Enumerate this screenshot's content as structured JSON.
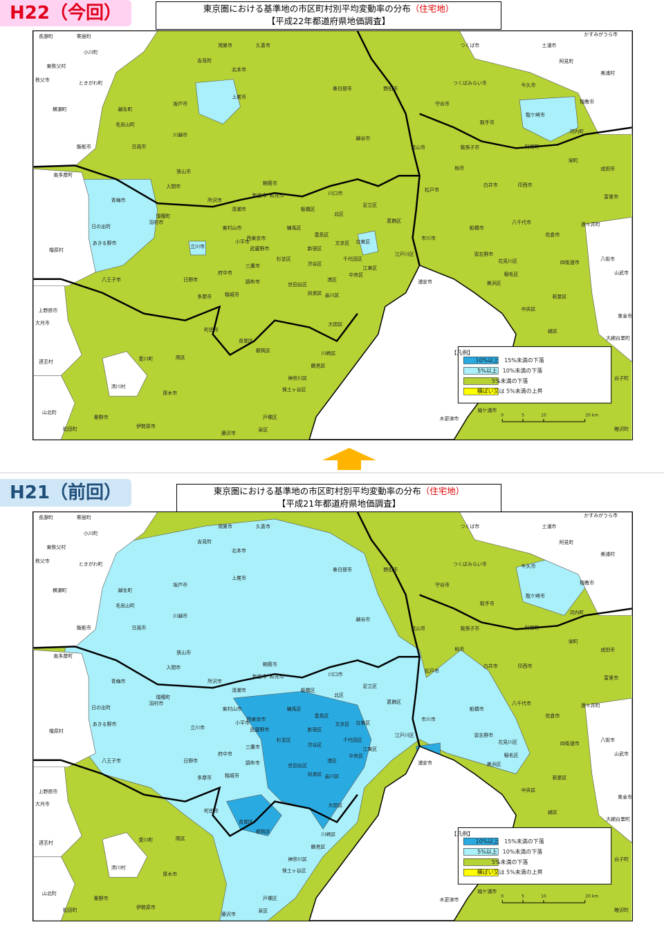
{
  "panels": [
    {
      "badge": "H22（今回）",
      "title": "東京圏における基準地の市区町村別平均変動率の分布",
      "title_note": "（住宅地）",
      "subtitle": "【平成22年都道府県地価調査】"
    },
    {
      "badge": "H21（前回）",
      "title": "東京圏における基準地の市区町村別平均変動率の分布",
      "title_note": "（住宅地）",
      "subtitle": "【平成21年都道府県地価調査】"
    }
  ],
  "legend": {
    "heading": "【凡例】",
    "items": [
      {
        "label": "10%以上　15%未満の下落",
        "color": "#29abe2"
      },
      {
        "label": "5%以上　10%未満の下落",
        "color": "#aaf0fa"
      },
      {
        "label": "5%未満の下落",
        "color": "#b5d335"
      },
      {
        "label": "横ばい又は 5%未満の上昇",
        "color": "#ffff00"
      }
    ]
  },
  "scale": {
    "ticks": [
      "0",
      "5",
      "10",
      "20 km"
    ]
  },
  "map_labels": [
    "長瀞町",
    "寄居町",
    "小川町",
    "東秩父村",
    "秩父市",
    "ときがわ町",
    "横瀬町",
    "越生町",
    "毛呂山町",
    "飯能市",
    "日高市",
    "坂戸市",
    "川越市",
    "鴻巣市",
    "久喜市",
    "吉見町",
    "北本市",
    "上尾市",
    "春日部市",
    "野田市",
    "つくば市",
    "土浦市",
    "かすみがうら市",
    "阿見町",
    "美浦村",
    "牛久市",
    "つくばみらい市",
    "稲敷市",
    "守谷市",
    "龍ケ崎市",
    "取手市",
    "河内町",
    "流山市",
    "我孫子市",
    "利根町",
    "越谷市",
    "栄町",
    "柏市",
    "成田市",
    "狭山市",
    "入間市",
    "奥多摩町",
    "所沢市",
    "白井市",
    "印西市",
    "松戸市",
    "川口市",
    "富里市",
    "青梅市",
    "足立区",
    "板橋区",
    "北区",
    "八千代市",
    "酒々井町",
    "日の出町",
    "練馬区",
    "船橋市",
    "葛飾区",
    "佐倉市",
    "豊島区",
    "市川市",
    "文京区",
    "台東区",
    "あきる野市",
    "檜原村",
    "新宿区",
    "江戸川区",
    "習志野市",
    "杉並区",
    "千代田区",
    "八街市",
    "花見川区",
    "四街道市",
    "渋谷区",
    "江東区",
    "府中市",
    "山武市",
    "稲毛区",
    "中央区",
    "八王子市",
    "日野市",
    "港区",
    "浦安市",
    "美浜区",
    "世田谷区",
    "目黒区",
    "稲城市",
    "品川区",
    "多摩市",
    "若葉区",
    "中央区",
    "上野原市",
    "東金市",
    "大月市",
    "大田区",
    "町田市",
    "緑区",
    "大網白里町",
    "青葉区",
    "都筑区",
    "川崎区",
    "南区",
    "愛川町",
    "道志村",
    "鶴見区",
    "神奈川区",
    "白子町",
    "清川村",
    "保土ヶ谷区",
    "厚木市",
    "袖ケ浦市",
    "山北町",
    "秦野市",
    "戸塚区",
    "木更津市",
    "伊勢原市",
    "松田町",
    "睦沢町",
    "泉区",
    "藤沢市",
    "立川市",
    "小平市",
    "東村山市",
    "西東京市",
    "三鷹市",
    "調布市",
    "武蔵野市",
    "羽村市",
    "瑞穂町",
    "清瀬市",
    "新座市",
    "朝霞市",
    "和光市"
  ]
}
